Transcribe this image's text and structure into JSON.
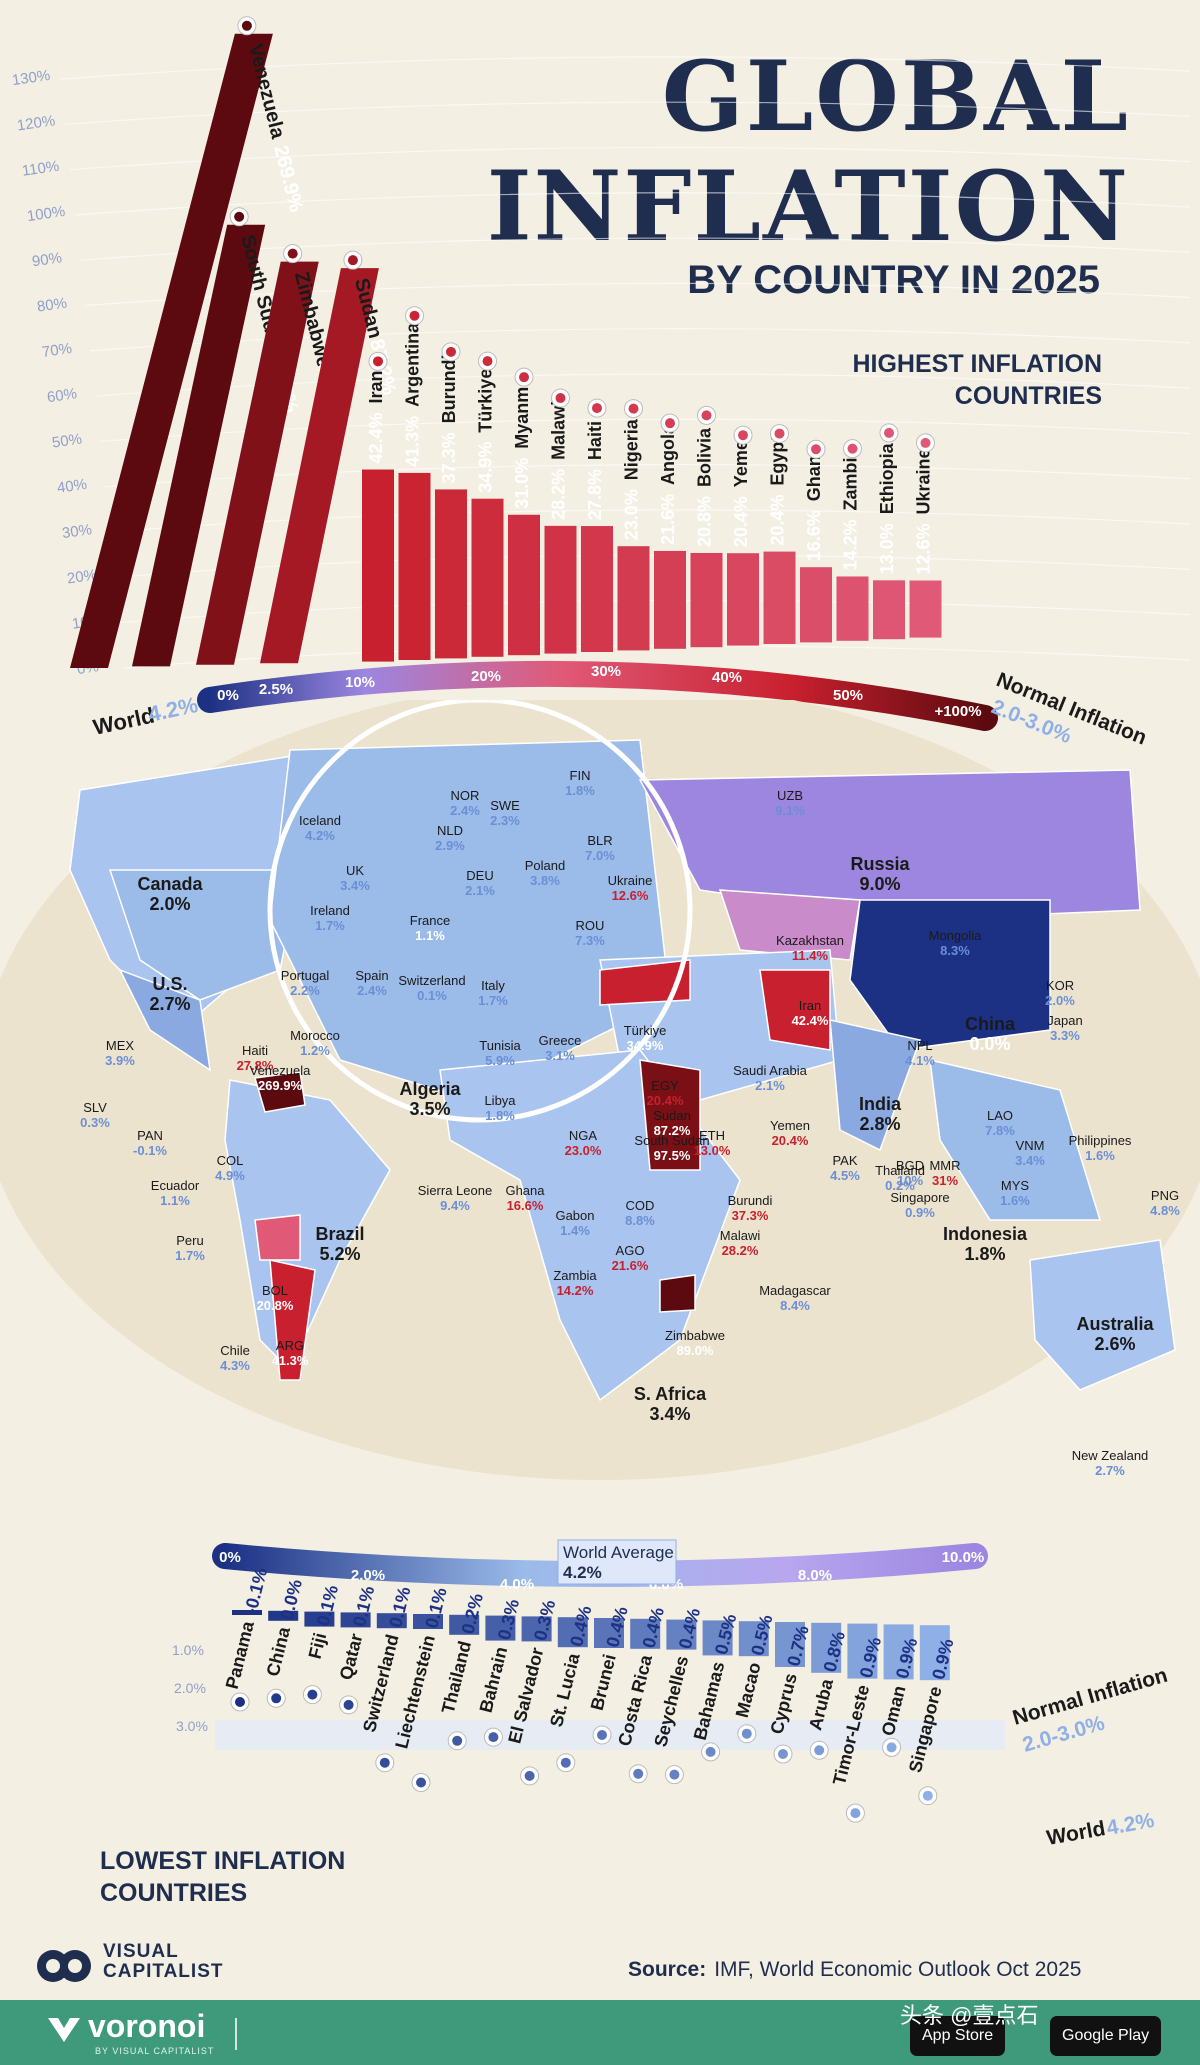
{
  "header": {
    "title_line1": "GLOBAL",
    "title_line2": "INFLATION",
    "subtitle": "BY COUNTRY IN 2025"
  },
  "colors": {
    "navy": "#1f2d4e",
    "background": "#f4efe3",
    "high_dark": "#5c0a0f",
    "high_red": "#c8202e",
    "high_pink": "#e05a78",
    "low_dark": "#1c3184",
    "low_blue": "#3d63b8",
    "low_light": "#8fb0e6",
    "footer_green": "#3f9a7c"
  },
  "highest_section": {
    "title_line1": "HIGHEST INFLATION",
    "title_line2": "COUNTRIES",
    "world_label": "World",
    "world_value": "4.2%",
    "normal_label": "Normal Inflation",
    "normal_value": "2.0-3.0%",
    "scale_ticks": [
      "0%",
      "2.5%",
      "10%",
      "20%",
      "30%",
      "40%",
      "50%",
      "+100%"
    ]
  },
  "lowest_section": {
    "title_line1": "LOWEST INFLATION",
    "title_line2": "COUNTRIES",
    "world_label": "World",
    "world_value": "4.2%",
    "normal_label": "Normal Inflation",
    "normal_value": "2.0-3.0%",
    "scale_ticks": [
      "0%",
      "2.0%",
      "4.0%",
      "6.0%",
      "8.0%",
      "10.0%"
    ],
    "avg_label": "World Average",
    "avg_value": "4.2%"
  },
  "chart_data": [
    {
      "type": "bar",
      "title": "HIGHEST INFLATION COUNTRIES",
      "y_ticks": [
        "130%",
        "120%",
        "110%",
        "100%",
        "90%",
        "80%",
        "70%",
        "60%",
        "50%",
        "40%",
        "30%",
        "20%",
        "10%",
        "0%"
      ],
      "categories": [
        "Venezuela",
        "South Sudan",
        "Zimbabwe",
        "Sudan",
        "Iran",
        "Argentina",
        "Burundi",
        "Türkiye",
        "Myanmar",
        "Malawi",
        "Haiti",
        "Nigeria",
        "Angola",
        "Bolivia",
        "Yemen",
        "Egypt",
        "Ghana",
        "Zambia",
        "Ethiopia",
        "Ukraine"
      ],
      "labels": [
        "269.9%",
        "97.5%",
        "89.0%",
        "87.2%",
        "42.4%",
        "41.3%",
        "37.3%",
        "34.9%",
        "31.0%",
        "28.2%",
        "27.8%",
        "23.0%",
        "21.6%",
        "20.8%",
        "20.4%",
        "20.4%",
        "16.6%",
        "14.2%",
        "13.0%",
        "12.6%"
      ],
      "values": [
        269.9,
        97.5,
        89.0,
        87.2,
        42.4,
        41.3,
        37.3,
        34.9,
        31.0,
        28.2,
        27.8,
        23.0,
        21.6,
        20.8,
        20.4,
        20.4,
        16.6,
        14.2,
        13.0,
        12.6
      ]
    },
    {
      "type": "bar",
      "title": "LOWEST INFLATION COUNTRIES",
      "y_ticks": [
        "1.0%",
        "2.0%",
        "3.0%"
      ],
      "categories": [
        "Panama",
        "China",
        "Fiji",
        "Qatar",
        "Switzerland",
        "Liechtenstein",
        "Thailand",
        "Bahrain",
        "El Salvador",
        "St. Lucia",
        "Brunei",
        "Costa Rica",
        "Seychelles",
        "Bahamas",
        "Macao",
        "Cyprus",
        "Aruba",
        "Timor-Leste",
        "Oman",
        "Singapore"
      ],
      "labels": [
        "-0.1%",
        "0.0%",
        "0.1%",
        "0.1%",
        "0.1%",
        "0.1%",
        "0.2%",
        "0.3%",
        "0.3%",
        "0.4%",
        "0.4%",
        "0.4%",
        "0.4%",
        "0.5%",
        "0.5%",
        "0.7%",
        "0.8%",
        "0.9%",
        "0.9%",
        "0.9%"
      ],
      "values": [
        -0.1,
        0.0,
        0.1,
        0.1,
        0.1,
        0.1,
        0.2,
        0.3,
        0.3,
        0.4,
        0.4,
        0.4,
        0.4,
        0.5,
        0.5,
        0.7,
        0.8,
        0.9,
        0.9,
        0.9
      ]
    },
    {
      "type": "heatmap",
      "title": "",
      "regions": [
        {
          "name": "Canada",
          "value": "2.0%"
        },
        {
          "name": "U.S.",
          "value": "2.7%"
        },
        {
          "name": "MEX",
          "value": "3.9%"
        },
        {
          "name": "Haiti",
          "value": "27.8%"
        },
        {
          "name": "SLV",
          "value": "0.3%"
        },
        {
          "name": "PAN",
          "value": "-0.1%"
        },
        {
          "name": "Venezuela",
          "value": "269.9%"
        },
        {
          "name": "COL",
          "value": "4.9%"
        },
        {
          "name": "Ecuador",
          "value": "1.1%"
        },
        {
          "name": "Peru",
          "value": "1.7%"
        },
        {
          "name": "Brazil",
          "value": "5.2%"
        },
        {
          "name": "BOL",
          "value": "20.8%"
        },
        {
          "name": "Chile",
          "value": "4.3%"
        },
        {
          "name": "ARG",
          "value": "41.3%"
        },
        {
          "name": "Iceland",
          "value": "4.2%"
        },
        {
          "name": "UK",
          "value": "3.4%"
        },
        {
          "name": "Ireland",
          "value": "1.7%"
        },
        {
          "name": "NOR",
          "value": "2.4%"
        },
        {
          "name": "SWE",
          "value": "2.3%"
        },
        {
          "name": "FIN",
          "value": "1.8%"
        },
        {
          "name": "NLD",
          "value": "2.9%"
        },
        {
          "name": "DEU",
          "value": "2.1%"
        },
        {
          "name": "Poland",
          "value": "3.8%"
        },
        {
          "name": "BLR",
          "value": "7.0%"
        },
        {
          "name": "Ukraine",
          "value": "12.6%"
        },
        {
          "name": "France",
          "value": "1.1%"
        },
        {
          "name": "ROU",
          "value": "7.3%"
        },
        {
          "name": "Portugal",
          "value": "2.2%"
        },
        {
          "name": "Spain",
          "value": "2.4%"
        },
        {
          "name": "Switzerland",
          "value": "0.1%"
        },
        {
          "name": "Italy",
          "value": "1.7%"
        },
        {
          "name": "Morocco",
          "value": "1.2%"
        },
        {
          "name": "Tunisia",
          "value": "5.9%"
        },
        {
          "name": "Greece",
          "value": "3.1%"
        },
        {
          "name": "Algeria",
          "value": "3.5%"
        },
        {
          "name": "Libya",
          "value": "1.8%"
        },
        {
          "name": "Türkiye",
          "value": "34.9%"
        },
        {
          "name": "EGY",
          "value": "20.4%"
        },
        {
          "name": "Sudan",
          "value": "87.2%"
        },
        {
          "name": "South Sudan",
          "value": "97.5%"
        },
        {
          "name": "ETH",
          "value": "13.0%"
        },
        {
          "name": "Saudi Arabia",
          "value": "2.1%"
        },
        {
          "name": "Yemen",
          "value": "20.4%"
        },
        {
          "name": "Iran",
          "value": "42.4%"
        },
        {
          "name": "UZB",
          "value": "9.1%"
        },
        {
          "name": "Russia",
          "value": "9.0%"
        },
        {
          "name": "Kazakhstan",
          "value": "11.4%"
        },
        {
          "name": "Mongolia",
          "value": "8.3%"
        },
        {
          "name": "China",
          "value": "0.0%"
        },
        {
          "name": "KOR",
          "value": "2.0%"
        },
        {
          "name": "Japan",
          "value": "3.3%"
        },
        {
          "name": "NPL",
          "value": "4.1%"
        },
        {
          "name": "India",
          "value": "2.8%"
        },
        {
          "name": "PAK",
          "value": "4.5%"
        },
        {
          "name": "BGD",
          "value": "10%"
        },
        {
          "name": "MMR",
          "value": "31%"
        },
        {
          "name": "LAO",
          "value": "7.8%"
        },
        {
          "name": "VNM",
          "value": "3.4%"
        },
        {
          "name": "Philippines",
          "value": "1.6%"
        },
        {
          "name": "MYS",
          "value": "1.6%"
        },
        {
          "name": "Thailand",
          "value": "0.2%"
        },
        {
          "name": "Singapore",
          "value": "0.9%"
        },
        {
          "name": "Indonesia",
          "value": "1.8%"
        },
        {
          "name": "PNG",
          "value": "4.8%"
        },
        {
          "name": "Australia",
          "value": "2.6%"
        },
        {
          "name": "New Zealand",
          "value": "2.7%"
        },
        {
          "name": "Sierra Leone",
          "value": "9.4%"
        },
        {
          "name": "Ghana",
          "value": "16.6%"
        },
        {
          "name": "NGA",
          "value": "23.0%"
        },
        {
          "name": "Gabon",
          "value": "1.4%"
        },
        {
          "name": "COD",
          "value": "8.8%"
        },
        {
          "name": "Burundi",
          "value": "37.3%"
        },
        {
          "name": "Malawi",
          "value": "28.2%"
        },
        {
          "name": "AGO",
          "value": "21.6%"
        },
        {
          "name": "Zambia",
          "value": "14.2%"
        },
        {
          "name": "Madagascar",
          "value": "8.4%"
        },
        {
          "name": "Zimbabwe",
          "value": "89.0%"
        },
        {
          "name": "S. Africa",
          "value": "3.4%"
        }
      ]
    }
  ],
  "source": {
    "label": "Source:",
    "text": "IMF, World Economic Outlook Oct 2025"
  },
  "branding": {
    "vc_line1": "VISUAL",
    "vc_line2": "CAPITALIST",
    "voronoi": "voronoi",
    "voronoi_sub": "BY VISUAL CAPITALIST",
    "app_store": "App Store",
    "google_play": "Google Play",
    "watermark": "头条 @壹点石"
  }
}
